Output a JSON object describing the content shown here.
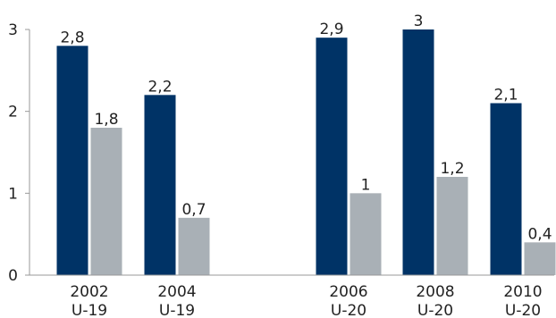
{
  "chart_data": {
    "type": "bar",
    "categories": [
      {
        "year": "2002",
        "group": "U-19"
      },
      {
        "year": "2004",
        "group": "U-19"
      },
      {
        "year": "2006",
        "group": "U-20"
      },
      {
        "year": "2008",
        "group": "U-20"
      },
      {
        "year": "2010",
        "group": "U-20"
      }
    ],
    "series": [
      {
        "values": [
          2.8,
          2.2,
          2.9,
          3,
          2.1
        ],
        "labels": [
          "2,8",
          "2,2",
          "2,9",
          "3",
          "2,1"
        ],
        "color": "#003366"
      },
      {
        "values": [
          1.8,
          0.7,
          1,
          1.2,
          0.4
        ],
        "labels": [
          "1,8",
          "0,7",
          "1",
          "1,2",
          "0,4"
        ],
        "color": "#a9b0b6"
      }
    ],
    "y_ticks": [
      "0",
      "1",
      "2",
      "3"
    ],
    "ylim": [
      0,
      3
    ],
    "title": "",
    "xlabel": "",
    "ylabel": "",
    "grid": false,
    "gap_after_category_index": 1
  }
}
